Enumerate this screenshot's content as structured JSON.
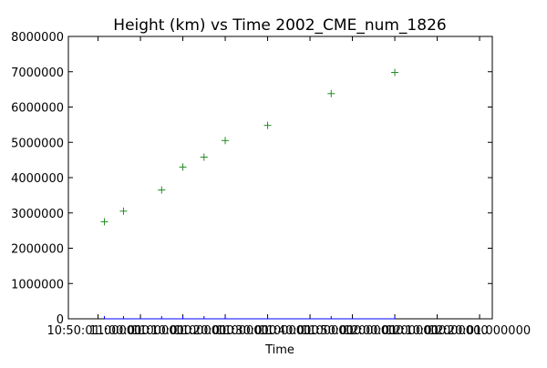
{
  "chart_data": {
    "type": "scatter",
    "title": "Height (km) vs Time 2002_CME_num_1826",
    "xlabel": "Time",
    "ylabel": "",
    "x_tick_labels": [
      "10:50:01.000000",
      "11:00:01.000000",
      "11:10:01.000000",
      "11:20:01.000000",
      "11:30:01.000000",
      "11:40:01.000000",
      "11:50:01.000000",
      "12:00:01.000000",
      "12:10:01.000000",
      "12:20:01.000000"
    ],
    "x_tick_values_minutes": [
      0,
      10,
      20,
      30,
      40,
      50,
      60,
      70,
      80,
      90
    ],
    "xlim_minutes": [
      -7,
      93
    ],
    "ylim": [
      0,
      8000000
    ],
    "y_ticks": [
      0,
      1000000,
      2000000,
      3000000,
      4000000,
      5000000,
      6000000,
      7000000,
      8000000
    ],
    "grid": false,
    "series": [
      {
        "marker": "+",
        "color": "#228B22",
        "x_minutes": [
          1.5,
          6,
          15,
          20,
          25,
          30,
          40,
          55,
          70
        ],
        "values": [
          2750000,
          3050000,
          3650000,
          4300000,
          4580000,
          5050000,
          5480000,
          6380000,
          6980000
        ]
      },
      {
        "marker": "line",
        "color": "#0000ff",
        "x_minutes": [
          1.5,
          6,
          15,
          20,
          25,
          30,
          40,
          55,
          70
        ],
        "values": [
          0,
          0,
          0,
          0,
          0,
          0,
          0,
          0,
          0
        ]
      }
    ]
  }
}
